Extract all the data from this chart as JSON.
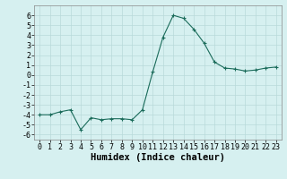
{
  "x": [
    0,
    1,
    2,
    3,
    4,
    5,
    6,
    7,
    8,
    9,
    10,
    11,
    12,
    13,
    14,
    15,
    16,
    17,
    18,
    19,
    20,
    21,
    22,
    23
  ],
  "y": [
    -4.0,
    -4.0,
    -3.7,
    -3.5,
    -5.5,
    -4.3,
    -4.5,
    -4.4,
    -4.4,
    -4.5,
    -3.5,
    0.3,
    3.8,
    6.0,
    5.7,
    4.6,
    3.2,
    1.3,
    0.7,
    0.6,
    0.4,
    0.5,
    0.7,
    0.8
  ],
  "line_color": "#1a6b5a",
  "marker": "+",
  "marker_size": 3,
  "bg_color": "#d6f0f0",
  "grid_color": "#b8dada",
  "xlabel": "Humidex (Indice chaleur)",
  "ylim": [
    -6.5,
    7.0
  ],
  "xlim": [
    -0.5,
    23.5
  ],
  "yticks": [
    -6,
    -5,
    -4,
    -3,
    -2,
    -1,
    0,
    1,
    2,
    3,
    4,
    5,
    6
  ],
  "xticks": [
    0,
    1,
    2,
    3,
    4,
    5,
    6,
    7,
    8,
    9,
    10,
    11,
    12,
    13,
    14,
    15,
    16,
    17,
    18,
    19,
    20,
    21,
    22,
    23
  ],
  "tick_fontsize": 6,
  "xlabel_fontsize": 7.5
}
